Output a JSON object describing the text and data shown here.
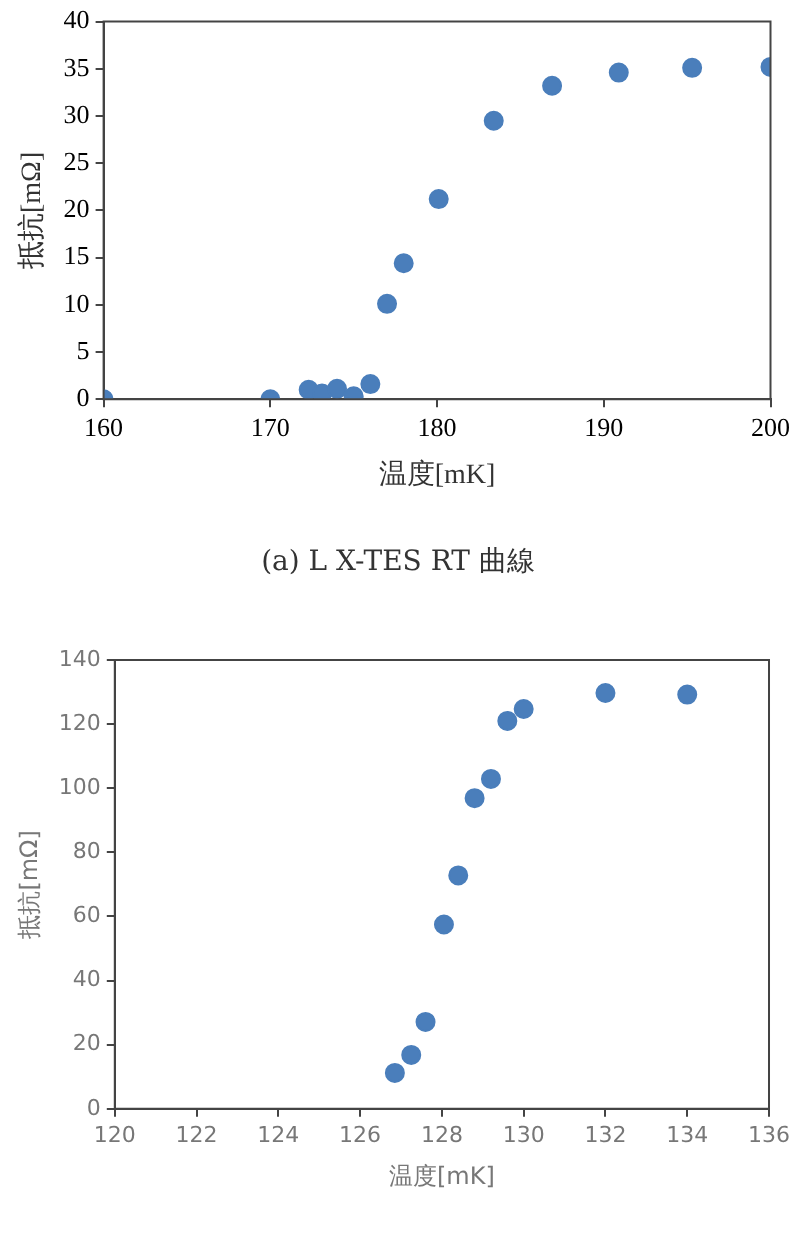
{
  "chart_data": [
    {
      "type": "scatter",
      "xlabel": "温度[mK]",
      "ylabel": "抵抗[mΩ]",
      "annotations": [
        "(a) L X-TES RT 曲線"
      ],
      "marker": "circle",
      "grid": false,
      "legend": false,
      "xlim": [
        160,
        200
      ],
      "xticks": [
        160,
        170,
        180,
        190,
        200
      ],
      "ylim": [
        0,
        40
      ],
      "yticks": [
        0,
        5,
        10,
        15,
        20,
        25,
        30,
        35,
        40
      ],
      "series": [
        {
          "color": "#4a7ebb",
          "x": [
            160,
            170,
            172.3,
            173.1,
            174.0,
            175.0,
            176.0,
            177.0,
            178.0,
            180.1,
            183.4,
            186.9,
            190.9,
            195.3,
            200
          ],
          "values": [
            0,
            0,
            1.0,
            0.6,
            1.1,
            0.3,
            1.6,
            10.1,
            14.4,
            21.2,
            29.5,
            33.2,
            34.6,
            35.1,
            35.2
          ]
        }
      ]
    },
    {
      "type": "scatter",
      "xlabel": "温度[mK]",
      "ylabel": "抵抗[mΩ]",
      "marker": "circle",
      "grid": false,
      "legend": false,
      "xlim": [
        120,
        136
      ],
      "xticks": [
        120,
        122,
        124,
        126,
        128,
        130,
        132,
        134,
        136
      ],
      "ylim": [
        0,
        140
      ],
      "yticks": [
        0,
        20,
        40,
        60,
        80,
        100,
        120,
        140
      ],
      "series": [
        {
          "color": "#4a7ebb",
          "x": [
            126.85,
            127.25,
            127.6,
            128.05,
            128.4,
            128.8,
            129.2,
            129.6,
            130.0,
            132.0,
            134.0
          ],
          "values": [
            11.2,
            16.8,
            27.1,
            57.5,
            72.8,
            96.9,
            102.9,
            121.0,
            124.7,
            129.7,
            129.2
          ]
        }
      ]
    }
  ]
}
